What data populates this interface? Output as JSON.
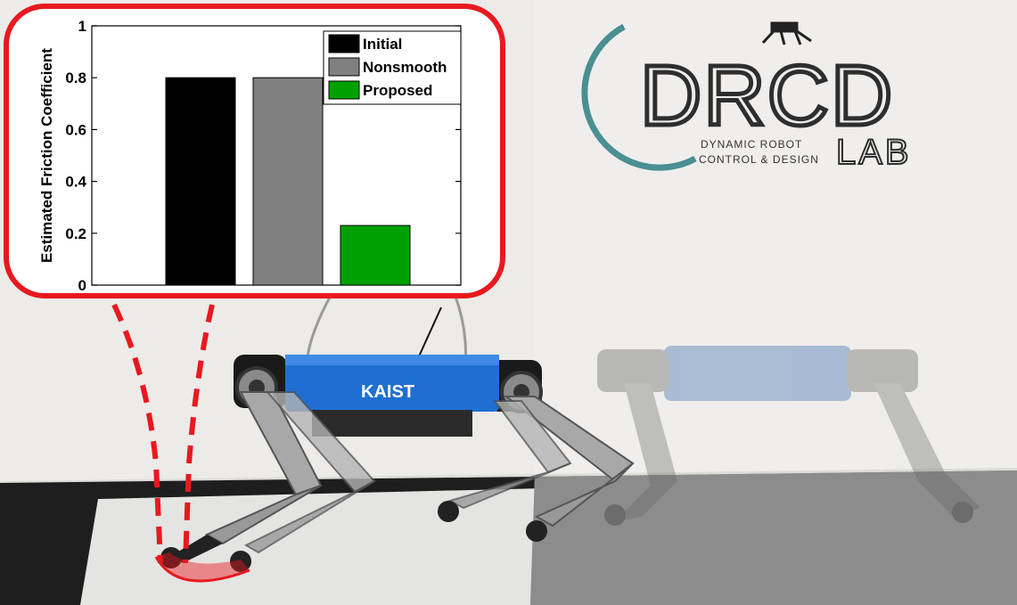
{
  "chart_data": {
    "type": "bar",
    "categories": [
      "Initial",
      "Nonsmooth",
      "Proposed"
    ],
    "values": [
      0.8,
      0.8,
      0.23
    ],
    "colors": [
      "#000000",
      "#808080",
      "#00a000"
    ],
    "title": "",
    "xlabel": "",
    "ylabel": "Estimated Friction Coefficient",
    "ylim": [
      0,
      1
    ],
    "yticks": [
      {
        "value": 0,
        "label": "0"
      },
      {
        "value": 0.2,
        "label": "0.2"
      },
      {
        "value": 0.4,
        "label": "0.4"
      },
      {
        "value": 0.6,
        "label": "0.6"
      },
      {
        "value": 0.8,
        "label": "0.8"
      },
      {
        "value": 1,
        "label": "1"
      }
    ],
    "grid": false,
    "legend_position": "top-right",
    "legend": [
      "Initial",
      "Nonsmooth",
      "Proposed"
    ]
  },
  "logo": {
    "main": "DRCD",
    "sub_line1": "DYNAMIC ROBOT",
    "sub_line2": "CONTROL & DESIGN",
    "lab": "LAB",
    "ring_color": "#4a8f92"
  },
  "robot": {
    "brand": "KAIST",
    "body_color": "#1f6fd1"
  },
  "annotation_color": "#e8191f"
}
